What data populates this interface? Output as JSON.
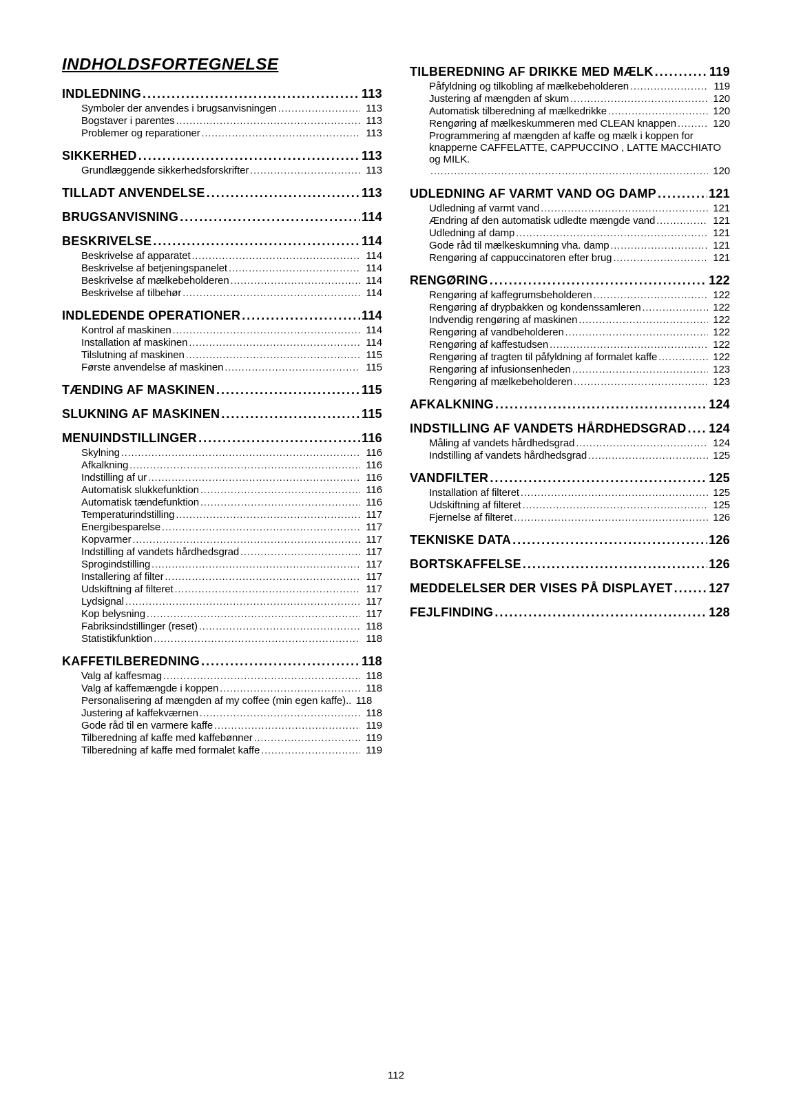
{
  "title": "INDHOLDSFORTEGNELSE",
  "pageNumber": "112",
  "left": [
    {
      "t": "section",
      "label": "INDLEDNING",
      "pg": "113"
    },
    {
      "t": "sub",
      "label": "Symboler der anvendes i brugsanvisningen",
      "pg": "113"
    },
    {
      "t": "sub",
      "label": "Bogstaver i parentes",
      "pg": "113"
    },
    {
      "t": "sub",
      "label": "Problemer og reparationer",
      "pg": "113"
    },
    {
      "t": "section",
      "label": "SIKKERHED",
      "pg": "113"
    },
    {
      "t": "sub",
      "label": "Grundlæggende sikkerhedsforskrifter",
      "pg": "113"
    },
    {
      "t": "section",
      "label": "TILLADT ANVENDELSE",
      "pg": "113"
    },
    {
      "t": "section",
      "label": "BRUGSANVISNING",
      "pg": "114"
    },
    {
      "t": "section",
      "label": "BESKRIVELSE",
      "pg": "114"
    },
    {
      "t": "sub",
      "label": "Beskrivelse af apparatet",
      "pg": "114"
    },
    {
      "t": "sub",
      "label": "Beskrivelse af betjeningspanelet",
      "pg": "114"
    },
    {
      "t": "sub",
      "label": "Beskrivelse af mælkebeholderen",
      "pg": "114"
    },
    {
      "t": "sub",
      "label": "Beskrivelse af tilbehør",
      "pg": "114"
    },
    {
      "t": "section",
      "label": "INDLEDENDE OPERATIONER",
      "pg": "114"
    },
    {
      "t": "sub",
      "label": "Kontrol af maskinen",
      "pg": "114"
    },
    {
      "t": "sub",
      "label": "Installation af maskinen",
      "pg": "114"
    },
    {
      "t": "sub",
      "label": "Tilslutning af maskinen",
      "pg": "115"
    },
    {
      "t": "sub",
      "label": "Første anvendelse af maskinen",
      "pg": "115"
    },
    {
      "t": "section",
      "label": "TÆNDING AF MASKINEN",
      "pg": "115"
    },
    {
      "t": "section",
      "label": "SLUKNING AF MASKINEN",
      "pg": "115"
    },
    {
      "t": "section",
      "label": "MENUINDSTILLINGER",
      "pg": "116"
    },
    {
      "t": "sub",
      "label": "Skylning",
      "pg": "116"
    },
    {
      "t": "sub",
      "label": "Afkalkning",
      "pg": "116"
    },
    {
      "t": "sub",
      "label": "Indstilling af ur",
      "pg": "116"
    },
    {
      "t": "sub",
      "label": "Automatisk slukkefunktion",
      "pg": "116"
    },
    {
      "t": "sub",
      "label": "Automatisk tændefunktion",
      "pg": "116"
    },
    {
      "t": "sub",
      "label": "Temperaturindstilling",
      "pg": "117"
    },
    {
      "t": "sub",
      "label": "Energibesparelse",
      "pg": "117"
    },
    {
      "t": "sub",
      "label": "Kopvarmer",
      "pg": "117"
    },
    {
      "t": "sub",
      "label": "Indstilling af vandets hårdhedsgrad",
      "pg": "117"
    },
    {
      "t": "sub",
      "label": "Sprogindstilling",
      "pg": "117"
    },
    {
      "t": "sub",
      "label": "Installering af filter",
      "pg": "117"
    },
    {
      "t": "sub",
      "label": "Udskiftning af filteret",
      "pg": "117"
    },
    {
      "t": "sub",
      "label": "Lydsignal",
      "pg": "117"
    },
    {
      "t": "sub",
      "label": "Kop belysning",
      "pg": "117"
    },
    {
      "t": "sub",
      "label": "Fabriksindstillinger (reset)",
      "pg": "118"
    },
    {
      "t": "sub",
      "label": "Statistikfunktion",
      "pg": "118"
    },
    {
      "t": "section",
      "label": "KAFFETILBEREDNING",
      "pg": "118"
    },
    {
      "t": "sub",
      "label": "Valg af kaffesmag",
      "pg": "118"
    },
    {
      "t": "sub",
      "label": "Valg af kaffemængde i koppen",
      "pg": "118"
    },
    {
      "t": "sub",
      "label": "Personalisering af mængden af my coffee (min egen kaffe)",
      "pg": "118",
      "noleader": true
    },
    {
      "t": "sub",
      "label": "Justering af kaffekværnen",
      "pg": "118"
    },
    {
      "t": "sub",
      "label": "Gode råd til en varmere kaffe",
      "pg": "119"
    },
    {
      "t": "sub",
      "label": "Tilberedning af kaffe med kaffebønner",
      "pg": "119"
    },
    {
      "t": "sub",
      "label": "Tilberedning af kaffe med formalet kaffe",
      "pg": "119"
    }
  ],
  "right": [
    {
      "t": "section",
      "label": "TILBEREDNING AF DRIKKE MED MÆLK",
      "pg": "119"
    },
    {
      "t": "sub",
      "label": "Påfyldning og tilkobling af mælkebeholderen",
      "pg": "119"
    },
    {
      "t": "sub",
      "label": "Justering af mængden af skum",
      "pg": "120"
    },
    {
      "t": "sub",
      "label": "Automatisk tilberedning af mælkedrikke",
      "pg": "120"
    },
    {
      "t": "sub",
      "label": "Rengøring af mælkeskummeren med CLEAN knappen",
      "pg": "120"
    },
    {
      "t": "sub",
      "label": "Programmering af mængden af kaffe og mælk i koppen for knapperne CAFFELATTE, CAPPUCCINO , LATTE MACCHIATO og MILK.",
      "pg": "120",
      "wrap": true
    },
    {
      "t": "section",
      "label": "UDLEDNING AF VARMT VAND OG DAMP",
      "pg": "121"
    },
    {
      "t": "sub",
      "label": "Udledning af varmt vand",
      "pg": "121"
    },
    {
      "t": "sub",
      "label": "Ændring af den automatisk udledte mængde vand",
      "pg": "121"
    },
    {
      "t": "sub",
      "label": "Udledning af damp",
      "pg": "121"
    },
    {
      "t": "sub",
      "label": "Gode råd til mælkeskumning vha. damp",
      "pg": "121"
    },
    {
      "t": "sub",
      "label": "Rengøring af cappuccinatoren efter brug",
      "pg": "121"
    },
    {
      "t": "section",
      "label": "RENGØRING",
      "pg": "122"
    },
    {
      "t": "sub",
      "label": "Rengøring af kaffegrumsbeholderen",
      "pg": "122"
    },
    {
      "t": "sub",
      "label": "Rengøring af drypbakken og kondenssamleren",
      "pg": "122"
    },
    {
      "t": "sub",
      "label": "Indvendig rengøring af maskinen",
      "pg": "122"
    },
    {
      "t": "sub",
      "label": "Rengøring af vandbeholderen",
      "pg": "122"
    },
    {
      "t": "sub",
      "label": "Rengøring af kaffestudsen",
      "pg": "122"
    },
    {
      "t": "sub",
      "label": "Rengøring af tragten til påfyldning af formalet kaffe",
      "pg": "122"
    },
    {
      "t": "sub",
      "label": "Rengøring af infusionsenheden",
      "pg": "123"
    },
    {
      "t": "sub",
      "label": "Rengøring af mælkebeholderen",
      "pg": "123"
    },
    {
      "t": "section",
      "label": "AFKALKNING",
      "pg": "124"
    },
    {
      "t": "section",
      "label": "INDSTILLING AF VANDETS HÅRDHEDSGRAD",
      "pg": "124"
    },
    {
      "t": "sub",
      "label": "Måling af vandets hårdhedsgrad",
      "pg": "124"
    },
    {
      "t": "sub",
      "label": "Indstilling af vandets hårdhedsgrad",
      "pg": "125"
    },
    {
      "t": "section",
      "label": "VANDFILTER",
      "pg": "125"
    },
    {
      "t": "sub",
      "label": "Installation af filteret",
      "pg": "125"
    },
    {
      "t": "sub",
      "label": "Udskiftning af filteret",
      "pg": "125"
    },
    {
      "t": "sub",
      "label": "Fjernelse af filteret",
      "pg": "126"
    },
    {
      "t": "section",
      "label": "TEKNISKE DATA",
      "pg": "126"
    },
    {
      "t": "section",
      "label": "BORTSKAFFELSE",
      "pg": "126"
    },
    {
      "t": "section",
      "label": "MEDDELELSER DER VISES PÅ DISPLAYET",
      "pg": "127"
    },
    {
      "t": "section",
      "label": "FEJLFINDING",
      "pg": "128"
    }
  ]
}
